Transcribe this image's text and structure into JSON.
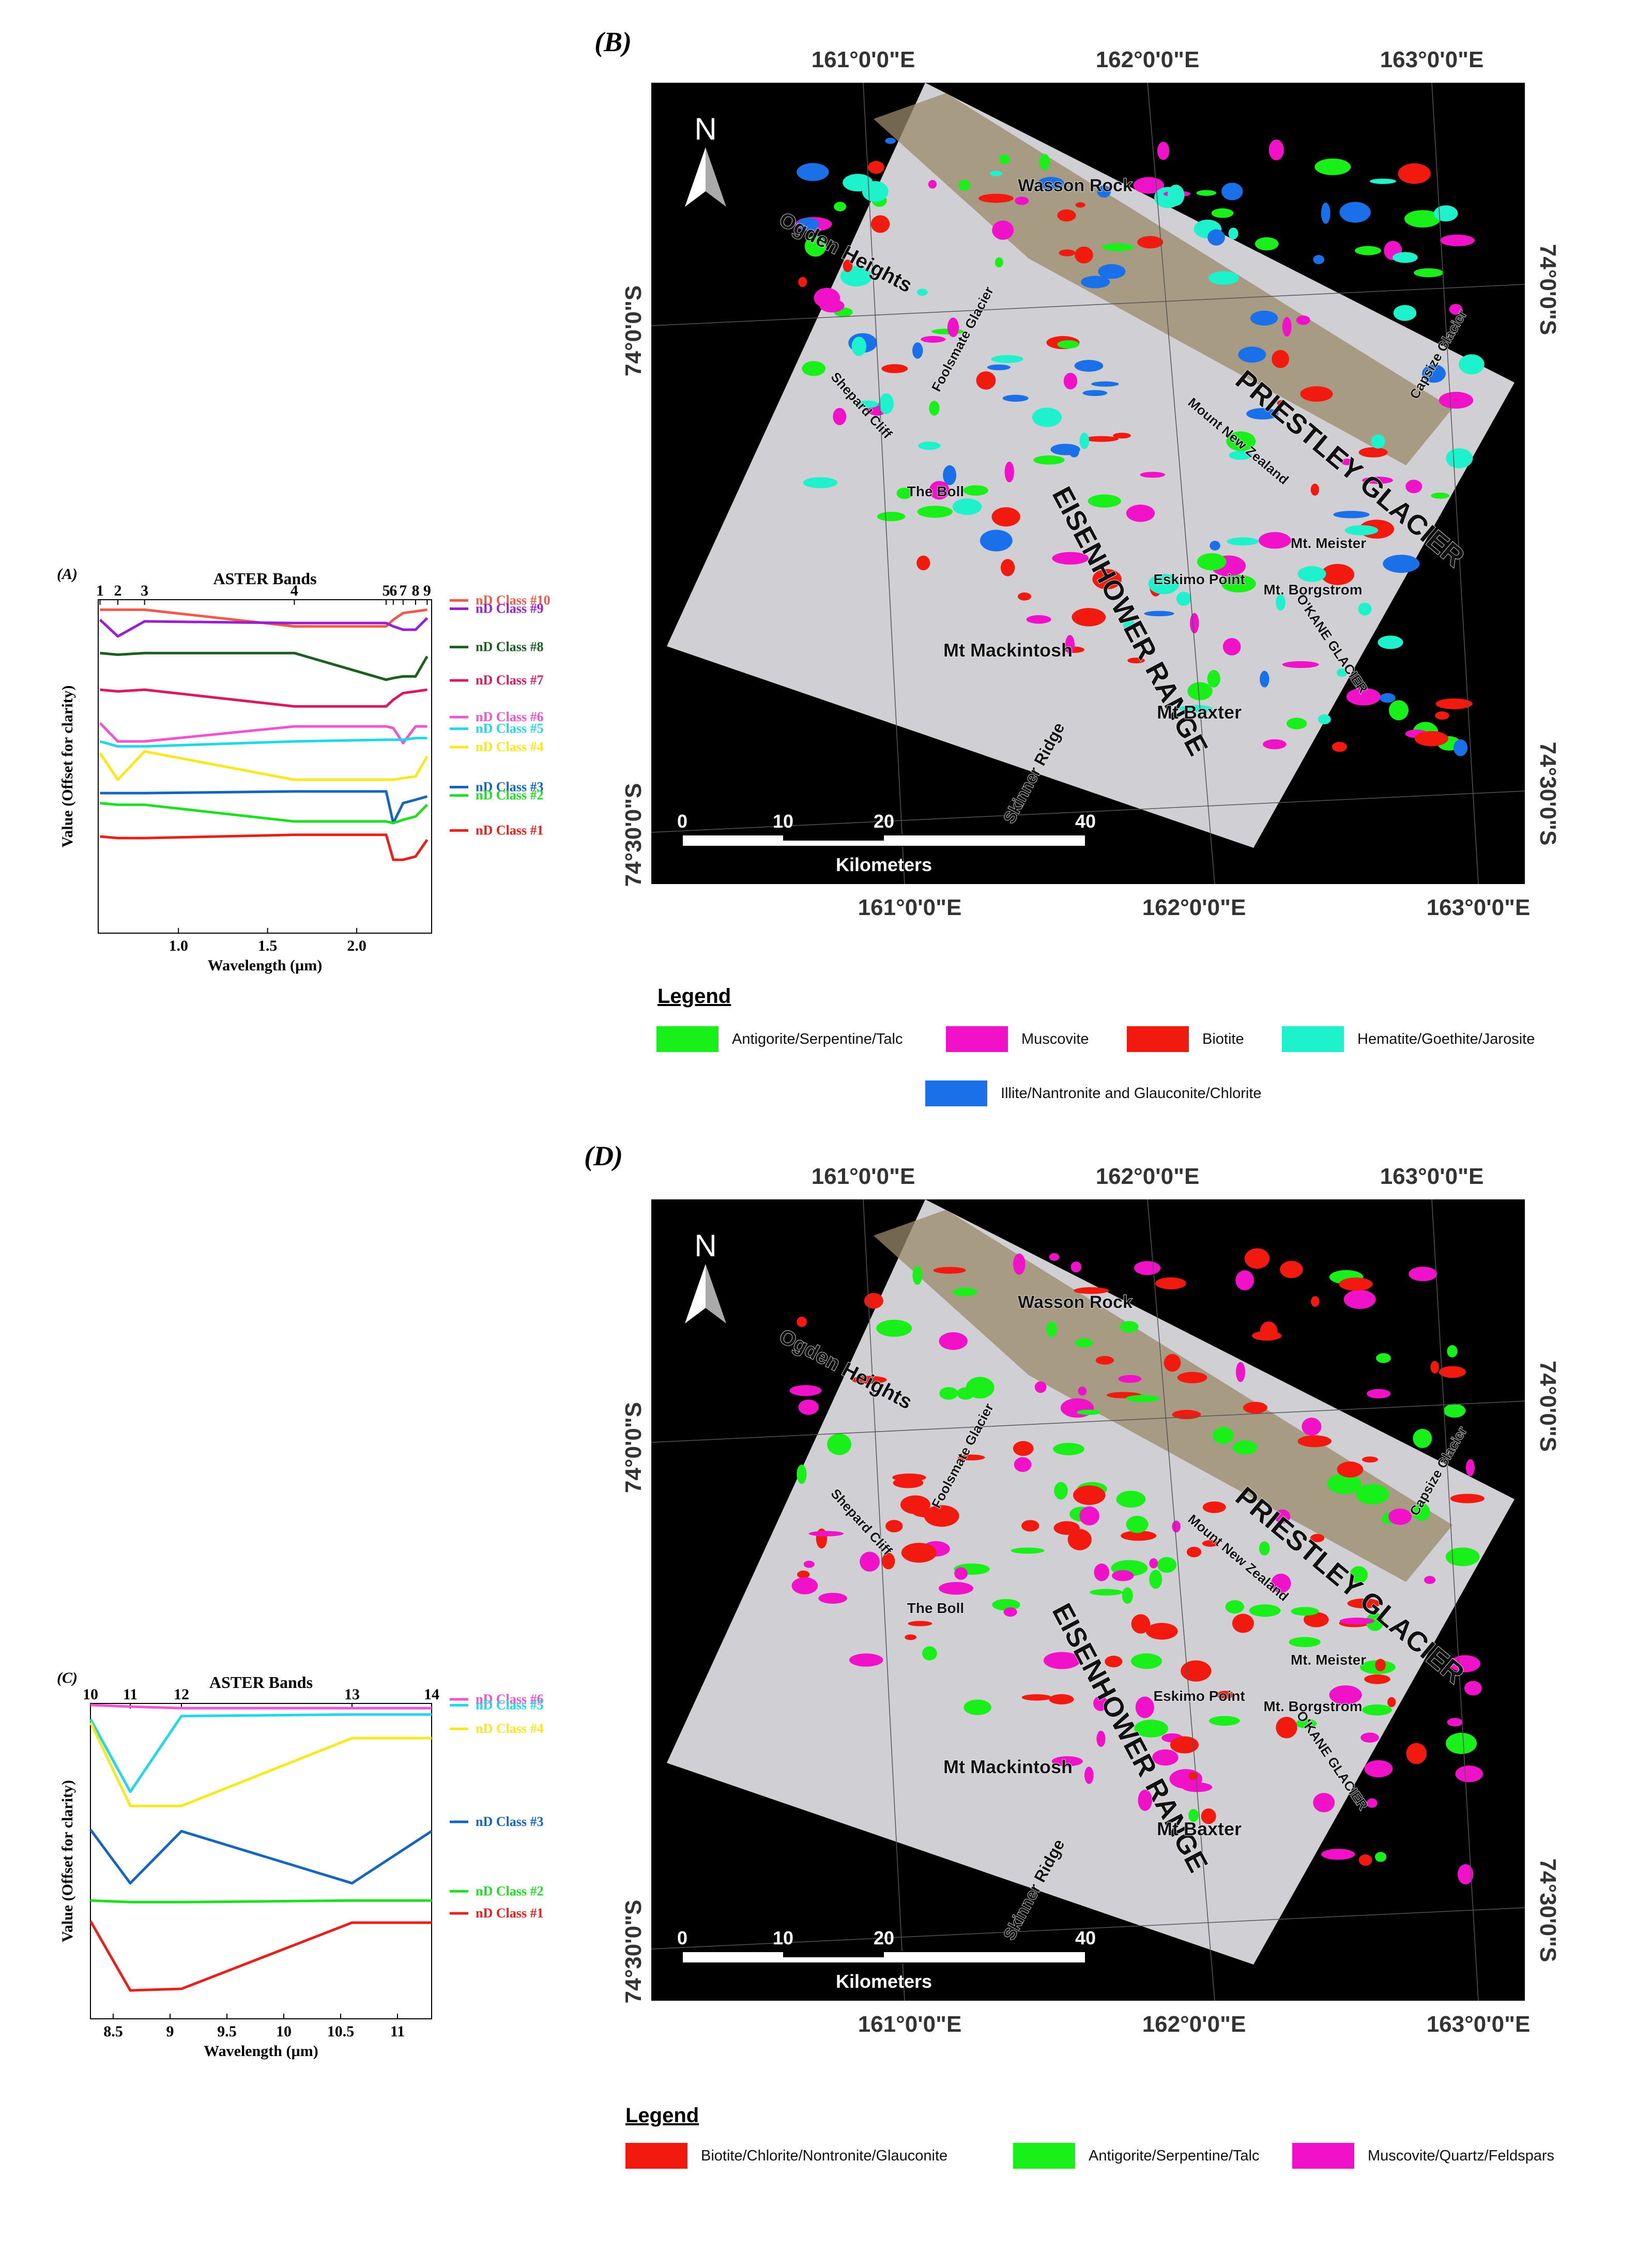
{
  "panels": {
    "A": {
      "label": "(A)"
    },
    "B": {
      "label": "(B)"
    },
    "C": {
      "label": "(C)"
    },
    "D": {
      "label": "(D)"
    }
  },
  "chart_data": [
    {
      "type": "line",
      "panel": "(A)",
      "title": "ASTER Bands",
      "xlabel": "Wavelength (µm)",
      "ylabel": "Value (Offset for clarity)",
      "xlim": [
        0.55,
        2.42
      ],
      "ylim": [
        0,
        10
      ],
      "xticks": [
        "1.0",
        "1.5",
        "2.0"
      ],
      "xtick_values": [
        1.0,
        1.5,
        2.0
      ],
      "band_ticks": [
        {
          "label": "1",
          "x": 0.56
        },
        {
          "label": "2",
          "x": 0.66
        },
        {
          "label": "3",
          "x": 0.81
        },
        {
          "label": "4",
          "x": 1.65
        },
        {
          "label": "5",
          "x": 2.165
        },
        {
          "label": "6",
          "x": 2.205
        },
        {
          "label": "7",
          "x": 2.26
        },
        {
          "label": "8",
          "x": 2.33
        },
        {
          "label": "9",
          "x": 2.395
        }
      ],
      "x": [
        0.56,
        0.66,
        0.81,
        1.65,
        2.165,
        2.205,
        2.26,
        2.33,
        2.395
      ],
      "series": [
        {
          "name": "nD Class #10",
          "color": "#f05a4a",
          "values": [
            9.7,
            9.7,
            9.7,
            9.2,
            9.2,
            9.4,
            9.6,
            9.65,
            9.7
          ]
        },
        {
          "name": "nD Class #9",
          "color": "#9a1fd0",
          "values": [
            9.4,
            8.9,
            9.35,
            9.3,
            9.3,
            9.2,
            9.1,
            9.1,
            9.45
          ]
        },
        {
          "name": "nD Class #8",
          "color": "#1b5e20",
          "values": [
            8.4,
            8.35,
            8.4,
            8.4,
            7.6,
            7.65,
            7.7,
            7.7,
            8.3
          ]
        },
        {
          "name": "nD Class #7",
          "color": "#d81b60",
          "values": [
            7.3,
            7.25,
            7.3,
            6.8,
            6.8,
            7.0,
            7.2,
            7.25,
            7.3
          ]
        },
        {
          "name": "nD Class #6",
          "color": "#f054d0",
          "values": [
            6.3,
            5.75,
            5.75,
            6.2,
            6.2,
            6.15,
            5.7,
            6.2,
            6.2
          ]
        },
        {
          "name": "nD Class #5",
          "color": "#20d8e8",
          "values": [
            5.75,
            5.6,
            5.6,
            5.75,
            5.8,
            5.8,
            5.8,
            5.85,
            5.85
          ]
        },
        {
          "name": "nD Class #4",
          "color": "#f8e81c",
          "values": [
            5.4,
            4.6,
            5.45,
            4.6,
            4.6,
            4.6,
            4.65,
            4.7,
            5.3
          ]
        },
        {
          "name": "nD Class #3",
          "color": "#1565c0",
          "values": [
            4.2,
            4.2,
            4.2,
            4.25,
            4.25,
            3.3,
            3.9,
            4.0,
            4.1
          ]
        },
        {
          "name": "nD Class #2",
          "color": "#1ee020",
          "values": [
            3.9,
            3.85,
            3.85,
            3.35,
            3.35,
            3.3,
            3.4,
            3.5,
            3.85
          ]
        },
        {
          "name": "nD Class #1",
          "color": "#e8201c",
          "values": [
            2.9,
            2.85,
            2.85,
            2.95,
            2.95,
            2.2,
            2.2,
            2.3,
            2.8
          ]
        }
      ]
    },
    {
      "type": "line",
      "panel": "(C)",
      "title": "ASTER Bands",
      "xlabel": "Wavelength (µm)",
      "ylabel": "Value (Offset for clarity)",
      "xlim": [
        8.3,
        11.3
      ],
      "ylim": [
        0,
        10
      ],
      "xticks": [
        "8.5",
        "9",
        "9.5",
        "10",
        "10.5",
        "11"
      ],
      "xtick_values": [
        8.5,
        9.0,
        9.5,
        10.0,
        10.5,
        11.0
      ],
      "band_ticks": [
        {
          "label": "10",
          "x": 8.3
        },
        {
          "label": "11",
          "x": 8.65
        },
        {
          "label": "12",
          "x": 9.1
        },
        {
          "label": "13",
          "x": 10.6
        },
        {
          "label": "14",
          "x": 11.3
        }
      ],
      "x": [
        8.3,
        8.65,
        9.1,
        10.6,
        11.3
      ],
      "series": [
        {
          "name": "nD Class #6",
          "color": "#f054d0",
          "values": [
            9.95,
            9.9,
            9.85,
            9.85,
            9.85
          ]
        },
        {
          "name": "nD Class #5",
          "color": "#20d8e8",
          "values": [
            9.5,
            7.2,
            9.6,
            9.65,
            9.65
          ]
        },
        {
          "name": "nD Class #4",
          "color": "#f8e81c",
          "values": [
            9.4,
            6.75,
            6.75,
            8.9,
            8.9
          ]
        },
        {
          "name": "nD Class #3",
          "color": "#1565c0",
          "values": [
            6.0,
            4.3,
            5.95,
            4.3,
            5.95
          ]
        },
        {
          "name": "nD Class #2",
          "color": "#1ee020",
          "values": [
            3.75,
            3.7,
            3.7,
            3.75,
            3.75
          ]
        },
        {
          "name": "nD Class #1",
          "color": "#e8201c",
          "values": [
            3.1,
            0.9,
            0.95,
            3.05,
            3.05
          ]
        }
      ]
    }
  ],
  "maps": {
    "B": {
      "lon_labels": [
        "161°0'0\"E",
        "162°0'0\"E",
        "163°0'0\"E"
      ],
      "lat_labels": [
        "74°0'0\"S",
        "74°30'0\"S"
      ],
      "north": "N",
      "scale": {
        "ticks": [
          "0",
          "10",
          "20",
          "40"
        ],
        "unit": "Kilometers"
      },
      "places": {
        "wasson": "Wasson Rock",
        "ogden": "Ogden Heights",
        "foolsmate": "Foolsmate Glacier",
        "capsize": "Capsize Glacier",
        "priestley": "PRIESTLEY GLACIER",
        "shepard": "Shepard Cliff",
        "boll": "The Boll",
        "newzealand": "Mount New Zealand",
        "eisenhower": "EISENHOWER RANGE",
        "meister": "Mt. Meister",
        "eskimo": "Eskimo Point",
        "borgstrom": "Mt. Borgstrom",
        "okane": "O'KANE GLACIER",
        "mackintosh": "Mt Mackintosh",
        "baxter": "Mt Baxter",
        "skinner": "Skinner Ridge"
      },
      "legend": {
        "title": "Legend",
        "items": [
          {
            "label": "Antigorite/Serpentine/Talc",
            "color": "#19f019"
          },
          {
            "label": "Muscovite",
            "color": "#f011c8"
          },
          {
            "label": "Biotite",
            "color": "#f21a0e"
          },
          {
            "label": "Hematite/Goethite/Jarosite",
            "color": "#1ef2cc"
          },
          {
            "label": "Illite/Nantronite and Glauconite/Chlorite",
            "color": "#1a70e8"
          }
        ]
      }
    },
    "D": {
      "lon_labels": [
        "161°0'0\"E",
        "162°0'0\"E",
        "163°0'0\"E"
      ],
      "lat_labels": [
        "74°0'0\"S",
        "74°30'0\"S"
      ],
      "north": "N",
      "scale": {
        "ticks": [
          "0",
          "10",
          "20",
          "40"
        ],
        "unit": "Kilometers"
      },
      "places": {
        "wasson": "Wasson Rock",
        "ogden": "Ogden Heights",
        "foolsmate": "Foolsmate Glacier",
        "capsize": "Capsize Glacier",
        "priestley": "PRIESTLEY GLACIER",
        "shepard": "Shepard Cliff",
        "boll": "The Boll",
        "newzealand": "Mount New Zealand",
        "eisenhower": "EISENHOWER RANGE",
        "meister": "Mt. Meister",
        "eskimo": "Eskimo Point",
        "borgstrom": "Mt. Borgstrom",
        "okane": "O'KANE GLACIER",
        "mackintosh": "Mt Mackintosh",
        "baxter": "Mt Baxter",
        "skinner": "Skinner Ridge"
      },
      "legend": {
        "title": "Legend",
        "items": [
          {
            "label": "Biotite/Chlorite/Nontronite/Glauconite",
            "color": "#f21a0e"
          },
          {
            "label": "Antigorite/Serpentine/Talc",
            "color": "#19f019"
          },
          {
            "label": "Muscovite/Quartz/Feldspars",
            "color": "#f011c8"
          }
        ]
      }
    }
  }
}
